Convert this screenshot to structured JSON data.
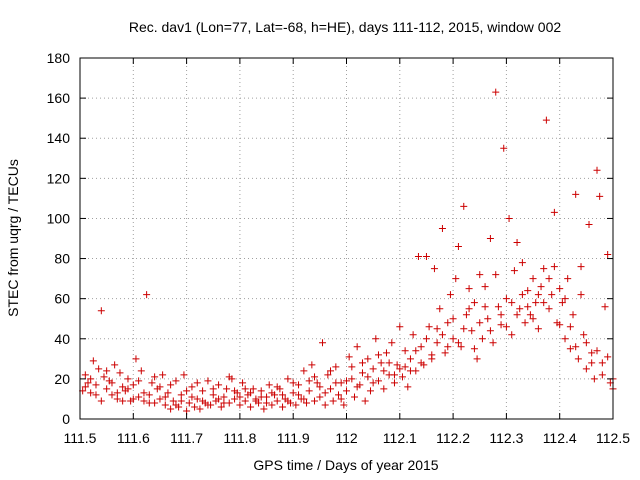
{
  "chart_data": {
    "type": "scatter",
    "title": "Rec. dav1 (Lon=77, Lat=-68, h=HE), days 111-112, 2015, window 002",
    "xlabel": "GPS time / Days of year 2015",
    "ylabel": "STEC from uqrg / TECUs",
    "xlim": [
      111.5,
      112.5
    ],
    "ylim": [
      0,
      180
    ],
    "xticks": [
      "111.5",
      "111.6",
      "111.7",
      "111.8",
      "111.9",
      "112",
      "112.1",
      "112.2",
      "112.3",
      "112.4",
      "112.5"
    ],
    "yticks": [
      "0",
      "20",
      "40",
      "60",
      "80",
      "100",
      "120",
      "140",
      "160",
      "180"
    ],
    "grid": true,
    "marker_color": "#cc0000",
    "marker": "plus",
    "series": [
      {
        "points": [
          [
            111.505,
            14
          ],
          [
            111.51,
            22
          ],
          [
            111.515,
            18
          ],
          [
            111.52,
            13
          ],
          [
            111.525,
            29
          ],
          [
            111.53,
            12
          ],
          [
            111.535,
            25
          ],
          [
            111.54,
            54
          ],
          [
            111.545,
            21
          ],
          [
            111.55,
            15
          ],
          [
            111.555,
            19
          ],
          [
            111.56,
            12
          ],
          [
            111.565,
            27
          ],
          [
            111.57,
            10
          ],
          [
            111.575,
            23
          ],
          [
            111.58,
            16
          ],
          [
            111.585,
            14
          ],
          [
            111.59,
            20
          ],
          [
            111.595,
            9
          ],
          [
            111.6,
            17
          ],
          [
            111.605,
            30
          ],
          [
            111.61,
            11
          ],
          [
            111.615,
            24
          ],
          [
            111.62,
            9
          ],
          [
            111.625,
            62
          ],
          [
            111.63,
            12
          ],
          [
            111.635,
            18
          ],
          [
            111.64,
            8
          ],
          [
            111.645,
            15
          ],
          [
            111.65,
            10
          ],
          [
            111.655,
            22
          ],
          [
            111.66,
            7
          ],
          [
            111.665,
            13
          ],
          [
            111.67,
            5
          ],
          [
            111.675,
            9
          ],
          [
            111.68,
            19
          ],
          [
            111.685,
            6
          ],
          [
            111.69,
            12
          ],
          [
            111.695,
            22
          ],
          [
            111.7,
            4
          ],
          [
            111.705,
            8
          ],
          [
            111.71,
            16
          ],
          [
            111.715,
            6
          ],
          [
            111.72,
            10
          ],
          [
            111.725,
            5
          ],
          [
            111.73,
            14
          ],
          [
            111.735,
            8
          ],
          [
            111.74,
            19
          ],
          [
            111.745,
            7
          ],
          [
            111.75,
            12
          ],
          [
            111.755,
            9
          ],
          [
            111.76,
            17
          ],
          [
            111.765,
            6
          ],
          [
            111.77,
            11
          ],
          [
            111.775,
            15
          ],
          [
            111.78,
            8
          ],
          [
            111.785,
            20
          ],
          [
            111.79,
            10
          ],
          [
            111.795,
            13
          ],
          [
            111.8,
            7
          ],
          [
            111.805,
            18
          ],
          [
            111.81,
            9
          ],
          [
            111.815,
            12
          ],
          [
            111.82,
            6
          ],
          [
            111.825,
            15
          ],
          [
            111.83,
            10
          ],
          [
            111.835,
            8
          ],
          [
            111.84,
            14
          ],
          [
            111.845,
            5
          ],
          [
            111.85,
            11
          ],
          [
            111.855,
            17
          ],
          [
            111.86,
            7
          ],
          [
            111.865,
            12
          ],
          [
            111.87,
            9
          ],
          [
            111.875,
            15
          ],
          [
            111.88,
            6
          ],
          [
            111.885,
            10
          ],
          [
            111.89,
            20
          ],
          [
            111.895,
            8
          ],
          [
            111.9,
            13
          ],
          [
            111.905,
            7
          ],
          [
            111.91,
            17
          ],
          [
            111.915,
            10
          ],
          [
            111.92,
            24
          ],
          [
            111.925,
            8
          ],
          [
            111.93,
            14
          ],
          [
            111.935,
            27
          ],
          [
            111.94,
            9
          ],
          [
            111.945,
            18
          ],
          [
            111.95,
            11
          ],
          [
            111.955,
            38
          ],
          [
            111.96,
            7
          ],
          [
            111.965,
            22
          ],
          [
            111.97,
            15
          ],
          [
            111.975,
            9
          ],
          [
            111.98,
            26
          ],
          [
            111.985,
            12
          ],
          [
            111.99,
            18
          ],
          [
            111.995,
            7
          ],
          [
            112.0,
            14
          ],
          [
            112.005,
            31
          ],
          [
            112.01,
            20
          ],
          [
            112.015,
            11
          ],
          [
            112.02,
            36
          ],
          [
            112.025,
            17
          ],
          [
            112.03,
            23
          ],
          [
            112.035,
            9
          ],
          [
            112.04,
            30
          ],
          [
            112.045,
            14
          ],
          [
            112.05,
            25
          ],
          [
            112.055,
            40
          ],
          [
            112.06,
            19
          ],
          [
            112.065,
            28
          ],
          [
            112.07,
            15
          ],
          [
            112.075,
            33
          ],
          [
            112.08,
            22
          ],
          [
            112.085,
            38
          ],
          [
            112.09,
            18
          ],
          [
            112.095,
            27
          ],
          [
            112.1,
            46
          ],
          [
            112.105,
            21
          ],
          [
            112.11,
            34
          ],
          [
            112.115,
            16
          ],
          [
            112.12,
            30
          ],
          [
            112.125,
            42
          ],
          [
            112.13,
            24
          ],
          [
            112.135,
            81
          ],
          [
            112.14,
            36
          ],
          [
            112.145,
            27
          ],
          [
            112.15,
            81
          ],
          [
            112.155,
            46
          ],
          [
            112.16,
            30
          ],
          [
            112.165,
            75
          ],
          [
            112.17,
            38
          ],
          [
            112.175,
            55
          ],
          [
            112.18,
            95
          ],
          [
            112.185,
            33
          ],
          [
            112.19,
            48
          ],
          [
            112.195,
            62
          ],
          [
            112.2,
            40
          ],
          [
            112.205,
            70
          ],
          [
            112.21,
            86
          ],
          [
            112.215,
            36
          ],
          [
            112.22,
            106
          ],
          [
            112.225,
            52
          ],
          [
            112.23,
            65
          ],
          [
            112.235,
            44
          ],
          [
            112.24,
            58
          ],
          [
            112.245,
            30
          ],
          [
            112.25,
            72
          ],
          [
            112.255,
            40
          ],
          [
            112.26,
            66
          ],
          [
            112.265,
            50
          ],
          [
            112.27,
            90
          ],
          [
            112.275,
            38
          ],
          [
            112.28,
            163
          ],
          [
            112.285,
            56
          ],
          [
            112.29,
            47
          ],
          [
            112.295,
            135
          ],
          [
            112.3,
            60
          ],
          [
            112.305,
            100
          ],
          [
            112.31,
            42
          ],
          [
            112.315,
            74
          ],
          [
            112.32,
            88
          ],
          [
            112.325,
            55
          ],
          [
            112.33,
            78
          ],
          [
            112.335,
            48
          ],
          [
            112.34,
            64
          ],
          [
            112.345,
            52
          ],
          [
            112.35,
            70
          ],
          [
            112.355,
            58
          ],
          [
            112.36,
            45
          ],
          [
            112.365,
            66
          ],
          [
            112.37,
            75
          ],
          [
            112.375,
            149
          ],
          [
            112.38,
            55
          ],
          [
            112.385,
            62
          ],
          [
            112.39,
            103
          ],
          [
            112.395,
            48
          ],
          [
            112.4,
            65
          ],
          [
            112.405,
            58
          ],
          [
            112.41,
            40
          ],
          [
            112.415,
            70
          ],
          [
            112.42,
            35
          ],
          [
            112.425,
            52
          ],
          [
            112.43,
            112
          ],
          [
            112.435,
            30
          ],
          [
            112.44,
            76
          ],
          [
            112.445,
            42
          ],
          [
            112.45,
            25
          ],
          [
            112.455,
            97
          ],
          [
            112.46,
            33
          ],
          [
            112.465,
            20
          ],
          [
            112.47,
            124
          ],
          [
            112.475,
            111
          ],
          [
            112.48,
            28
          ],
          [
            112.485,
            56
          ],
          [
            112.49,
            82
          ],
          [
            112.495,
            18
          ],
          [
            112.5,
            15
          ],
          [
            111.51,
            16
          ],
          [
            111.52,
            20
          ],
          [
            111.53,
            17
          ],
          [
            111.54,
            9
          ],
          [
            111.55,
            24
          ],
          [
            111.56,
            18
          ],
          [
            111.57,
            13
          ],
          [
            111.58,
            9
          ],
          [
            111.59,
            15
          ],
          [
            111.6,
            10
          ],
          [
            111.61,
            19
          ],
          [
            111.62,
            13
          ],
          [
            111.63,
            8
          ],
          [
            111.64,
            21
          ],
          [
            111.65,
            16
          ],
          [
            111.66,
            11
          ],
          [
            111.67,
            17
          ],
          [
            111.68,
            7
          ],
          [
            111.69,
            9
          ],
          [
            111.7,
            14
          ],
          [
            111.71,
            11
          ],
          [
            111.72,
            18
          ],
          [
            111.73,
            9
          ],
          [
            111.74,
            7
          ],
          [
            111.75,
            15
          ],
          [
            111.76,
            10
          ],
          [
            111.77,
            8
          ],
          [
            111.78,
            21
          ],
          [
            111.79,
            14
          ],
          [
            111.8,
            11
          ],
          [
            111.81,
            15
          ],
          [
            111.82,
            13
          ],
          [
            111.83,
            9
          ],
          [
            111.84,
            11
          ],
          [
            111.85,
            8
          ],
          [
            111.86,
            13
          ],
          [
            111.87,
            16
          ],
          [
            111.88,
            12
          ],
          [
            111.89,
            9
          ],
          [
            111.9,
            18
          ],
          [
            111.91,
            12
          ],
          [
            111.92,
            10
          ],
          [
            111.93,
            19
          ],
          [
            111.94,
            21
          ],
          [
            111.95,
            16
          ],
          [
            111.96,
            13
          ],
          [
            111.97,
            24
          ],
          [
            111.98,
            18
          ],
          [
            111.99,
            10
          ],
          [
            112.0,
            19
          ],
          [
            112.01,
            26
          ],
          [
            112.02,
            16
          ],
          [
            112.03,
            28
          ],
          [
            112.04,
            21
          ],
          [
            112.05,
            18
          ],
          [
            112.06,
            32
          ],
          [
            112.07,
            24
          ],
          [
            112.08,
            28
          ],
          [
            112.09,
            22
          ],
          [
            112.1,
            25
          ],
          [
            112.11,
            26
          ],
          [
            112.12,
            24
          ],
          [
            112.13,
            34
          ],
          [
            112.14,
            28
          ],
          [
            112.15,
            40
          ],
          [
            112.16,
            32
          ],
          [
            112.17,
            45
          ],
          [
            112.18,
            42
          ],
          [
            112.19,
            36
          ],
          [
            112.2,
            50
          ],
          [
            112.21,
            38
          ],
          [
            112.22,
            45
          ],
          [
            112.23,
            55
          ],
          [
            112.24,
            35
          ],
          [
            112.25,
            48
          ],
          [
            112.26,
            56
          ],
          [
            112.27,
            44
          ],
          [
            112.28,
            72
          ],
          [
            112.29,
            52
          ],
          [
            112.3,
            46
          ],
          [
            112.31,
            58
          ],
          [
            112.32,
            52
          ],
          [
            112.33,
            62
          ],
          [
            112.34,
            56
          ],
          [
            112.35,
            50
          ],
          [
            112.36,
            62
          ],
          [
            112.37,
            58
          ],
          [
            112.38,
            70
          ],
          [
            112.39,
            76
          ],
          [
            112.4,
            47
          ],
          [
            112.41,
            60
          ],
          [
            112.42,
            46
          ],
          [
            112.43,
            36
          ],
          [
            112.44,
            62
          ],
          [
            112.45,
            38
          ],
          [
            112.46,
            28
          ],
          [
            112.47,
            34
          ],
          [
            112.48,
            22
          ],
          [
            112.49,
            31
          ],
          [
            112.5,
            20
          ]
        ]
      }
    ]
  }
}
